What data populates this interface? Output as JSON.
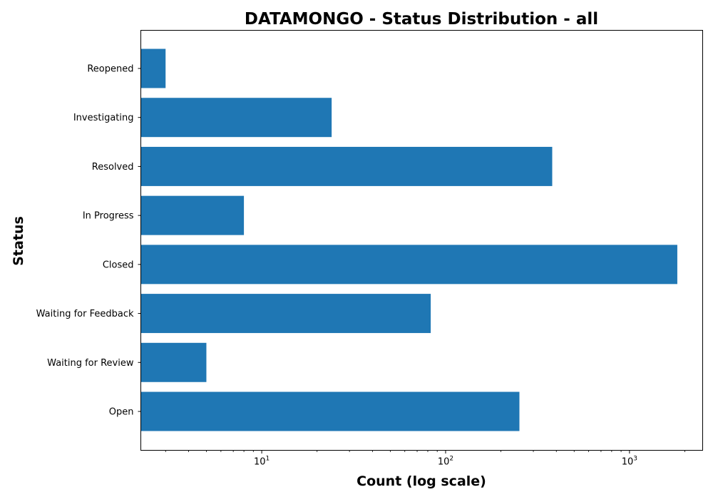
{
  "chart_data": {
    "type": "bar",
    "orientation": "horizontal",
    "title": "DATAMONGO - Status Distribution - all",
    "xlabel": "Count (log scale)",
    "ylabel": "Status",
    "xscale": "log",
    "xlim": [
      2.2,
      2500
    ],
    "categories": [
      "Open",
      "Waiting for Review",
      "Waiting for Feedback",
      "Closed",
      "In Progress",
      "Resolved",
      "Investigating",
      "Reopened"
    ],
    "values": [
      252,
      5,
      83,
      1820,
      8,
      380,
      24,
      3
    ],
    "x_tick_labels": [
      {
        "base": "10",
        "exp": "1",
        "value": 10
      },
      {
        "base": "10",
        "exp": "2",
        "value": 100
      },
      {
        "base": "10",
        "exp": "3",
        "value": 1000
      }
    ],
    "bar_color": "#1f77b4",
    "grid": false,
    "legend": "none"
  }
}
